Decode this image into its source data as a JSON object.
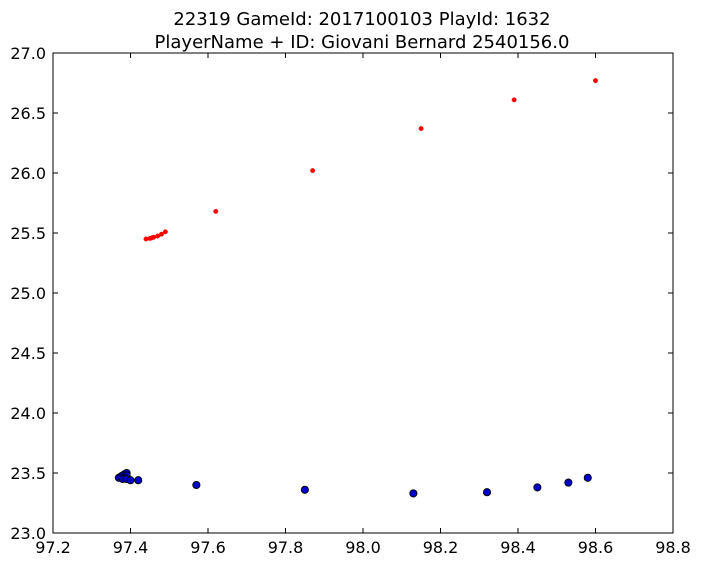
{
  "chart_data": {
    "type": "scatter",
    "title": [
      "22319 GameId: 2017100103 PlayId: 1632",
      "PlayerName + ID: Giovani Bernard 2540156.0"
    ],
    "xlabel": "",
    "ylabel": "",
    "xlim": [
      97.2,
      98.8
    ],
    "ylim": [
      23.0,
      27.0
    ],
    "xticks": [
      "97.2",
      "97.4",
      "97.6",
      "97.8",
      "98.0",
      "98.2",
      "98.4",
      "98.6",
      "98.8"
    ],
    "yticks": [
      "23.0",
      "23.5",
      "24.0",
      "24.5",
      "25.0",
      "25.5",
      "26.0",
      "26.5",
      "27.0"
    ],
    "grid": false,
    "series": [
      {
        "color": "#ff0000",
        "marker": "small-dot",
        "points": [
          [
            97.44,
            25.45
          ],
          [
            97.45,
            25.455
          ],
          [
            97.455,
            25.46
          ],
          [
            97.46,
            25.465
          ],
          [
            97.47,
            25.475
          ],
          [
            97.48,
            25.49
          ],
          [
            97.49,
            25.51
          ],
          [
            97.62,
            25.68
          ],
          [
            97.87,
            26.02
          ],
          [
            98.15,
            26.37
          ],
          [
            98.39,
            26.61
          ],
          [
            98.6,
            26.77
          ]
        ]
      },
      {
        "color": "#0000cc",
        "marker": "circle",
        "points": [
          [
            97.37,
            23.46
          ],
          [
            97.375,
            23.47
          ],
          [
            97.38,
            23.48
          ],
          [
            97.385,
            23.49
          ],
          [
            97.39,
            23.5
          ],
          [
            97.39,
            23.48
          ],
          [
            97.385,
            23.46
          ],
          [
            97.38,
            23.45
          ],
          [
            97.39,
            23.45
          ],
          [
            97.4,
            23.44
          ],
          [
            97.42,
            23.44
          ],
          [
            97.57,
            23.4
          ],
          [
            97.85,
            23.36
          ],
          [
            98.13,
            23.33
          ],
          [
            98.32,
            23.34
          ],
          [
            98.45,
            23.38
          ],
          [
            98.53,
            23.42
          ],
          [
            98.58,
            23.46
          ]
        ]
      }
    ]
  }
}
